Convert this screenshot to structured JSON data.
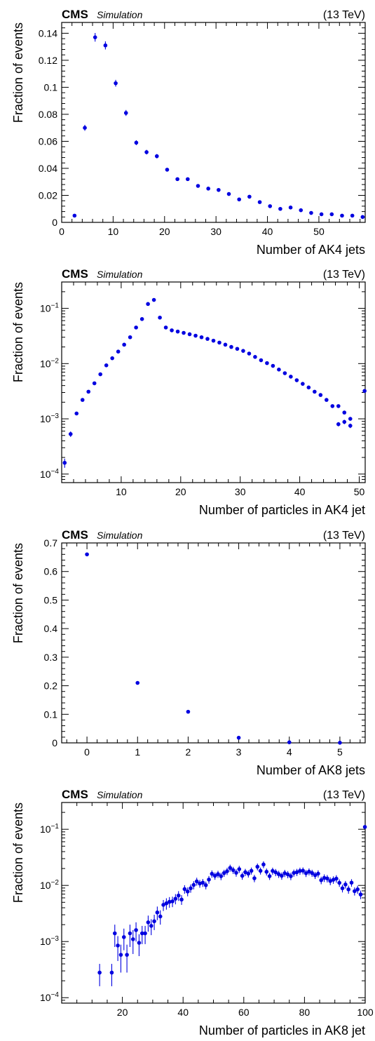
{
  "chart_data": [
    {
      "type": "scatter",
      "header": {
        "experiment": "CMS",
        "label": "Simulation",
        "energy": "(13 TeV)"
      },
      "xlabel": "Number of AK4 jets",
      "ylabel": "Fraction of events",
      "xscale": "linear",
      "yscale": "linear",
      "xlim": [
        0,
        59
      ],
      "ylim": [
        0,
        0.148
      ],
      "xticks": [
        0,
        10,
        20,
        30,
        40,
        50
      ],
      "yticks": [
        0,
        0.02,
        0.04,
        0.06,
        0.08,
        0.1,
        0.12,
        0.14
      ],
      "ytick_labels": [
        "0",
        "0.02",
        "0.04",
        "0.06",
        "0.08",
        "0.1",
        "0.12",
        "0.14"
      ],
      "grid": false,
      "series": [
        {
          "color": "#0000e0",
          "x": [
            2.5,
            4.5,
            6.5,
            8.5,
            10.5,
            12.5,
            14.5,
            16.5,
            18.5,
            20.5,
            22.5,
            24.5,
            26.5,
            28.5,
            30.5,
            32.5,
            34.5,
            36.5,
            38.5,
            40.5,
            42.5,
            44.5,
            46.5,
            48.5,
            50.5,
            52.5,
            54.5,
            56.5,
            58.5
          ],
          "y": [
            0.005,
            0.07,
            0.137,
            0.131,
            0.103,
            0.081,
            0.059,
            0.052,
            0.049,
            0.039,
            0.032,
            0.032,
            0.027,
            0.025,
            0.024,
            0.021,
            0.017,
            0.019,
            0.015,
            0.012,
            0.01,
            0.011,
            0.009,
            0.007,
            0.006,
            0.006,
            0.005,
            0.005,
            0.004
          ],
          "yerr": [
            0.001,
            0.0022,
            0.0032,
            0.003,
            0.0025,
            0.0022,
            0.0018,
            0.0017,
            0.0016,
            0.0013,
            0.0012,
            0.0012,
            0.001,
            0.001,
            0.001,
            0.001,
            0.0008,
            0.0009,
            0.0008,
            0.0007,
            0.0006,
            0.0007,
            0.0006,
            0.0005,
            0.0005,
            0.0005,
            0.0005,
            0.0005,
            0.0004
          ]
        }
      ]
    },
    {
      "type": "scatter",
      "header": {
        "experiment": "CMS",
        "label": "Simulation",
        "energy": "(13 TeV)"
      },
      "xlabel": "Number of particles in AK4 jet",
      "ylabel": "Fraction of events",
      "xscale": "linear",
      "yscale": "log",
      "xlim": [
        0,
        51
      ],
      "ylim": [
        7e-05,
        0.3
      ],
      "xticks": [
        10,
        20,
        30,
        40,
        50
      ],
      "yticks": [
        0.0001,
        0.001,
        0.01,
        0.1
      ],
      "ytick_labels": [
        "10^-4",
        "10^-3",
        "10^-2",
        "10^-1"
      ],
      "grid": false,
      "series": [
        {
          "color": "#0000e0",
          "x": [
            0.5,
            1.5,
            2.5,
            3.5,
            4.5,
            5.5,
            6.5,
            7.5,
            8.5,
            9.5,
            10.5,
            11.5,
            12.5,
            13.5,
            14.5,
            15.5,
            16.5,
            17.5,
            18.5,
            19.5,
            20.5,
            21.5,
            22.5,
            23.5,
            24.5,
            25.5,
            26.5,
            27.5,
            28.5,
            29.5,
            30.5,
            31.5,
            32.5,
            33.5,
            34.5,
            35.5,
            36.5,
            37.5,
            38.5,
            39.5,
            40.5,
            41.5,
            42.5,
            43.5,
            44.5,
            45.5,
            46.5,
            47.5,
            48.5,
            50.9
          ],
          "y": [
            0.00016,
            0.00053,
            0.00125,
            0.0022,
            0.0031,
            0.0044,
            0.0064,
            0.0093,
            0.0125,
            0.0165,
            0.022,
            0.03,
            0.045,
            0.064,
            0.12,
            0.142,
            0.068,
            0.045,
            0.04,
            0.038,
            0.036,
            0.034,
            0.032,
            0.03,
            0.028,
            0.026,
            0.024,
            0.022,
            0.02,
            0.0185,
            0.017,
            0.0152,
            0.0132,
            0.0115,
            0.0102,
            0.0091,
            0.0078,
            0.0067,
            0.0058,
            0.005,
            0.0043,
            0.0037,
            0.0031,
            0.0027,
            0.0022,
            0.0017,
            0.0017,
            0.0013,
            0.001,
            0.0032
          ],
          "yerr": [
            3e-05,
            6e-05,
            0,
            0,
            0,
            0,
            0,
            0,
            0,
            0,
            0,
            0,
            0,
            0,
            0,
            0,
            0,
            0,
            0,
            0,
            0,
            0,
            0,
            0,
            0,
            0,
            0,
            0,
            0,
            0,
            0,
            0,
            0,
            0,
            0,
            0,
            0,
            0,
            0,
            0,
            0,
            0,
            0,
            0,
            0,
            0,
            0,
            0,
            0,
            0
          ]
        },
        {
          "color": "#0000e0",
          "x": [
            46.5,
            47.5,
            48.5
          ],
          "y": [
            0.0008,
            0.00088,
            0.00075
          ],
          "yerr": [
            7e-05,
            8e-05,
            7e-05
          ]
        }
      ]
    },
    {
      "type": "scatter",
      "header": {
        "experiment": "CMS",
        "label": "Simulation",
        "energy": "(13 TeV)"
      },
      "xlabel": "Number of AK8 jets",
      "ylabel": "Fraction of events",
      "xscale": "linear",
      "yscale": "linear",
      "xlim": [
        -0.5,
        5.5
      ],
      "ylim": [
        0,
        0.7
      ],
      "xticks": [
        0,
        1,
        2,
        3,
        4,
        5
      ],
      "yticks": [
        0,
        0.1,
        0.2,
        0.3,
        0.4,
        0.5,
        0.6,
        0.7
      ],
      "ytick_labels": [
        "0",
        "0.1",
        "0.2",
        "0.3",
        "0.4",
        "0.5",
        "0.6",
        "0.7"
      ],
      "grid": false,
      "series": [
        {
          "color": "#0000e0",
          "x": [
            0,
            1,
            2,
            3,
            4,
            5
          ],
          "y": [
            0.66,
            0.21,
            0.109,
            0.018,
            0.002,
            0.0005
          ],
          "yerr": [
            0.004,
            0.003,
            0.002,
            0.001,
            0,
            0
          ]
        }
      ]
    },
    {
      "type": "scatter",
      "header": {
        "experiment": "CMS",
        "label": "Simulation",
        "energy": "(13 TeV)"
      },
      "xlabel": "Number of particles in AK8 jet",
      "ylabel": "Fraction of events",
      "xscale": "linear",
      "yscale": "log",
      "xlim": [
        0,
        100
      ],
      "ylim": [
        8e-05,
        0.3
      ],
      "xticks": [
        20,
        40,
        60,
        80,
        100
      ],
      "yticks": [
        0.0001,
        0.001,
        0.01,
        0.1
      ],
      "ytick_labels": [
        "10^-4",
        "10^-3",
        "10^-2",
        "10^-1"
      ],
      "grid": false,
      "series": [
        {
          "color": "#0000e0",
          "x": [
            12.5,
            16.5,
            17.5,
            18.5,
            19.5,
            20.5,
            21.5,
            22.5,
            23.5,
            24.5,
            25.5,
            26.5,
            27.5,
            28.5,
            29.5,
            30.5,
            31.5,
            32.5,
            33.5,
            34.5,
            35.5,
            36.5,
            37.5,
            38.5,
            39.5,
            40.5,
            41.5,
            42.5,
            43.5,
            44.5,
            45.5,
            46.5,
            47.5,
            48.5,
            49.5,
            50.5,
            51.5,
            52.5,
            53.5,
            54.5,
            55.5,
            56.5,
            57.5,
            58.5,
            59.5,
            60.5,
            61.5,
            62.5,
            63.5,
            64.5,
            65.5,
            66.5,
            67.5,
            68.5,
            69.5,
            70.5,
            71.5,
            72.5,
            73.5,
            74.5,
            75.5,
            76.5,
            77.5,
            78.5,
            79.5,
            80.5,
            81.5,
            82.5,
            83.5,
            84.5,
            85.5,
            86.5,
            87.5,
            88.5,
            89.5,
            90.5,
            91.5,
            92.5,
            93.5,
            94.5,
            95.5,
            96.5,
            97.5,
            98.5,
            99.9
          ],
          "y": [
            0.00028,
            0.00028,
            0.0014,
            0.00085,
            0.00058,
            0.0012,
            0.00058,
            0.0014,
            0.0011,
            0.0016,
            0.00095,
            0.0014,
            0.0014,
            0.0022,
            0.0019,
            0.0023,
            0.0033,
            0.0028,
            0.0045,
            0.0048,
            0.0051,
            0.0052,
            0.0058,
            0.0066,
            0.0056,
            0.0086,
            0.0078,
            0.0089,
            0.0102,
            0.0118,
            0.0108,
            0.0112,
            0.0101,
            0.0127,
            0.0161,
            0.0148,
            0.0159,
            0.0146,
            0.0166,
            0.0179,
            0.0205,
            0.0187,
            0.0168,
            0.0195,
            0.0148,
            0.0172,
            0.0162,
            0.0182,
            0.0134,
            0.0215,
            0.0182,
            0.0236,
            0.0175,
            0.0146,
            0.0181,
            0.0171,
            0.0159,
            0.0148,
            0.0165,
            0.0157,
            0.0146,
            0.0167,
            0.0172,
            0.0181,
            0.0183,
            0.0165,
            0.0176,
            0.0166,
            0.0152,
            0.0162,
            0.0124,
            0.0136,
            0.0133,
            0.012,
            0.0126,
            0.0132,
            0.0111,
            0.0089,
            0.0104,
            0.0085,
            0.0112,
            0.0079,
            0.0085,
            0.0069,
            0.11
          ],
          "yerr": [
            0.00012,
            0.00012,
            0.0006,
            0.0004,
            0.0003,
            0.0005,
            0.0003,
            0.0006,
            0.0005,
            0.0006,
            0.0004,
            0.0005,
            0.0005,
            0.0007,
            0.0006,
            0.0007,
            0.0009,
            0.0008,
            0.001,
            0.0011,
            0.0011,
            0.0011,
            0.0012,
            0.0013,
            0.0011,
            0.0015,
            0.0014,
            0.0015,
            0.0017,
            0.0019,
            0.0017,
            0.0018,
            0.0016,
            0.002,
            0.0024,
            0.0022,
            0.0023,
            0.0022,
            0.0024,
            0.0026,
            0.0029,
            0.0027,
            0.0025,
            0.0028,
            0.0022,
            0.0025,
            0.0024,
            0.0026,
            0.002,
            0.003,
            0.0026,
            0.0033,
            0.0025,
            0.0021,
            0.0026,
            0.0025,
            0.0023,
            0.0022,
            0.0024,
            0.0023,
            0.0022,
            0.0024,
            0.0025,
            0.0026,
            0.0026,
            0.0024,
            0.0025,
            0.0024,
            0.0022,
            0.0024,
            0.0019,
            0.0021,
            0.002,
            0.0019,
            0.0019,
            0.002,
            0.0017,
            0.0014,
            0.0016,
            0.0014,
            0.0017,
            0.0013,
            0.0014,
            0.0012,
            0.008
          ]
        }
      ]
    }
  ]
}
